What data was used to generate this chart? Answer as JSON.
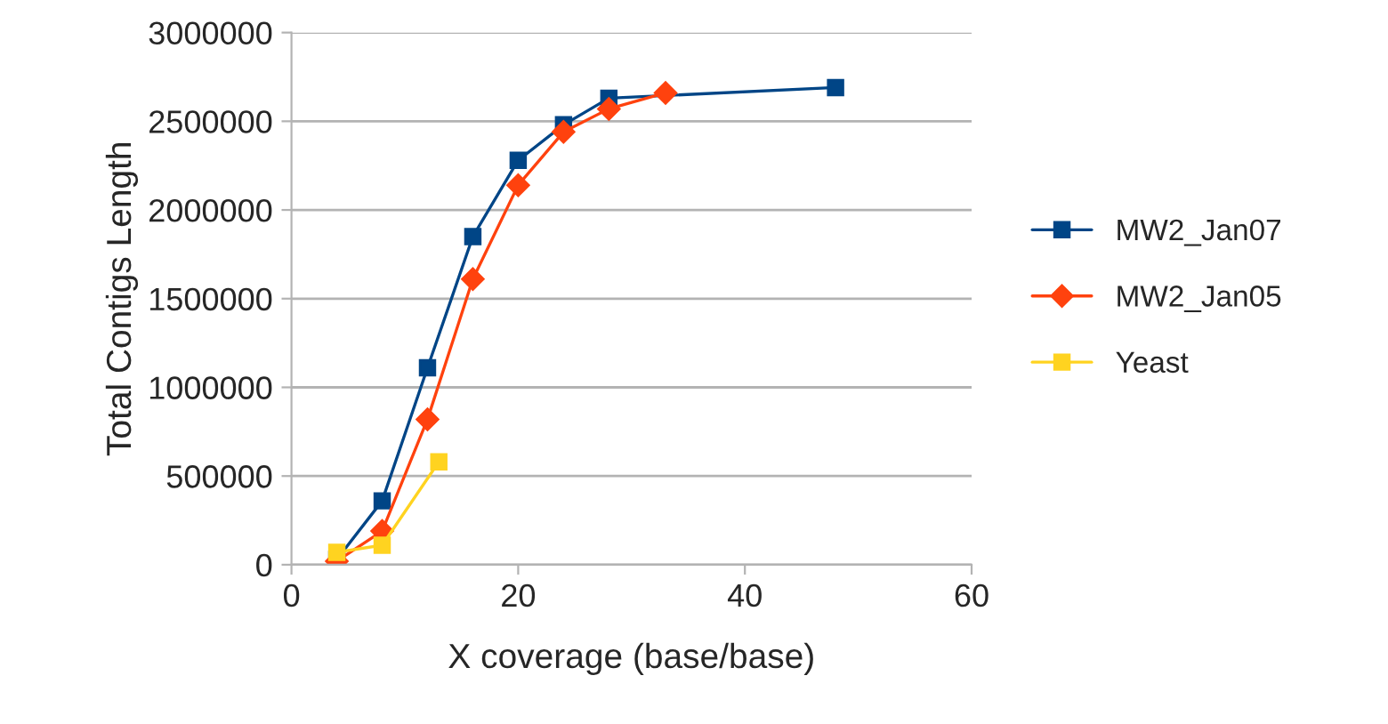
{
  "chart_data": {
    "type": "line",
    "xlabel": "X coverage (base/base)",
    "ylabel": "Total Contigs Length",
    "series": [
      {
        "name": "MW2_Jan07",
        "color": "#004586",
        "marker": "square",
        "x": [
          4,
          8,
          12,
          16,
          20,
          24,
          28,
          48
        ],
        "values": [
          30000,
          360000,
          1110000,
          1850000,
          2280000,
          2480000,
          2630000,
          2690000
        ]
      },
      {
        "name": "MW2_Jan05",
        "color": "#ff420e",
        "marker": "diamond",
        "x": [
          4,
          8,
          12,
          16,
          20,
          24,
          28,
          33
        ],
        "values": [
          20000,
          190000,
          820000,
          1610000,
          2140000,
          2440000,
          2570000,
          2660000
        ]
      },
      {
        "name": "Yeast",
        "color": "#ffd320",
        "marker": "square",
        "x": [
          4,
          8,
          13
        ],
        "values": [
          70000,
          110000,
          580000
        ]
      }
    ],
    "xlim": [
      0,
      60
    ],
    "xticks": [
      0,
      20,
      40,
      60
    ],
    "ylim": [
      0,
      3000000
    ],
    "yticks": [
      0,
      500000,
      1000000,
      1500000,
      2000000,
      2500000,
      3000000
    ],
    "grid": "y",
    "legend": "right",
    "line_style": "solid"
  }
}
